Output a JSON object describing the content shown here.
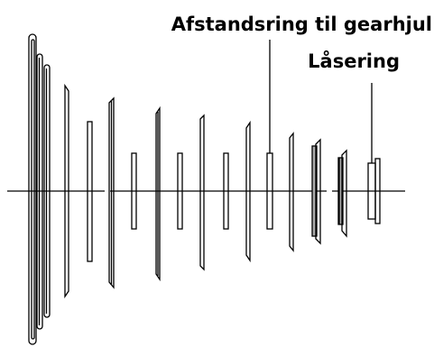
{
  "labels": {
    "spacer_ring": "Afstandsring til gearhjul",
    "locking_ring": "Låsering"
  },
  "colors": {
    "stroke": "#000000",
    "background": "#ffffff",
    "shaded_fill": "#aaaaaa"
  }
}
